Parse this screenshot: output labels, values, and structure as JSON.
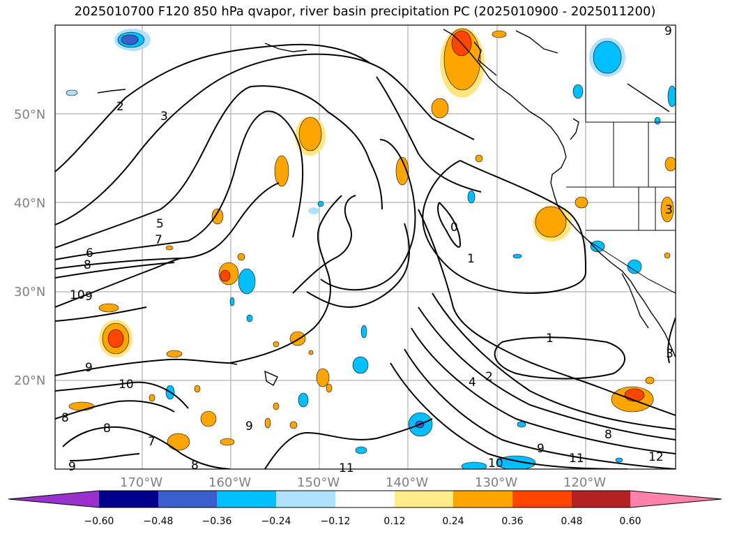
{
  "title": "2025010700 F120 850 hPa qvapor, river basin precipitation PC (2025010900 - 2025011200)",
  "lat_labels": [
    "50°N",
    "40°N",
    "30°N",
    "20°N"
  ],
  "lon_labels": [
    "170°W",
    "160°W",
    "150°W",
    "140°W",
    "130°W",
    "120°W"
  ],
  "contour_labels": [
    "2",
    "3",
    "5",
    "7",
    "6",
    "8",
    "10",
    "9",
    "9",
    "10",
    "8",
    "8",
    "7",
    "8",
    "9",
    "0",
    "1",
    "1",
    "4",
    "2",
    "9",
    "10",
    "11",
    "8",
    "11",
    "12",
    "9",
    "3",
    "3",
    "9"
  ],
  "colorbar": {
    "ticks": [
      "−0.60",
      "−0.48",
      "−0.36",
      "−0.24",
      "−0.12",
      "0.12",
      "0.24",
      "0.36",
      "0.48",
      "0.60"
    ],
    "colors": [
      "#9932cc",
      "#00008b",
      "#3a5fcd",
      "#00bfff",
      "#b0e2ff",
      "#ffffff",
      "#ffec8b",
      "#ffa500",
      "#ff4500",
      "#b22222",
      "#ff82ab"
    ]
  },
  "colors": {
    "orange": "#ffa500",
    "yellow": "#ffe680",
    "red": "#ff4500",
    "cyan": "#00bfff",
    "lightblue": "#b0e2ff",
    "blue": "#3a5fcd"
  }
}
